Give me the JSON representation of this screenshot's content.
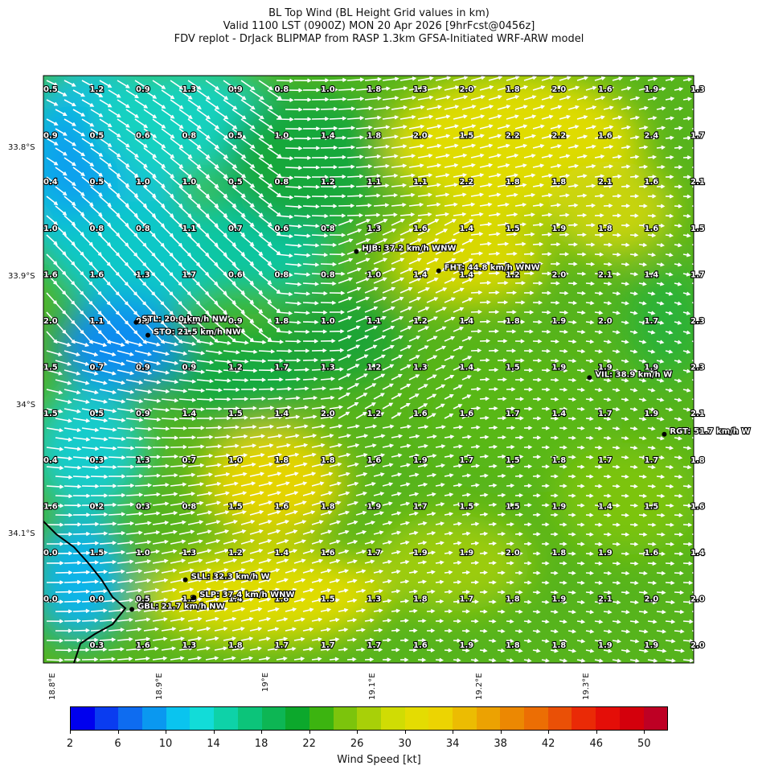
{
  "header": {
    "line1": "BL Top Wind (BL Height Grid values in km)",
    "line2": "Valid 1100 LST (0900Z) MON 20 Apr 2026 [9hrFcst@0456z]",
    "line3": "FDV replot - DrJack BLIPMAP from RASP 1.3km GFSA-Initiated WRF-ARW model"
  },
  "map": {
    "lat_labels": [
      "33.8°S",
      "33.9°S",
      "34°S",
      "34.1°S"
    ],
    "lon_labels": [
      "18.8°E",
      "18.9°E",
      "19°E",
      "19.1°E",
      "19.2°E",
      "19.3°E"
    ],
    "grid_values": [
      [
        "0.5",
        "1.2",
        "0.9",
        "1.3",
        "0.9",
        "0.8",
        "1.0",
        "1.8",
        "1.3",
        "2.0",
        "1.8",
        "2.0",
        "1.6",
        "1.9",
        "1.3"
      ],
      [
        "0.9",
        "0.5",
        "0.6",
        "0.8",
        "0.5",
        "1.0",
        "1.4",
        "1.8",
        "2.0",
        "1.5",
        "2.2",
        "2.2",
        "1.6",
        "2.4",
        "1.7"
      ],
      [
        "0.4",
        "0.5",
        "1.0",
        "1.0",
        "0.5",
        "0.8",
        "1.2",
        "1.1",
        "1.1",
        "2.2",
        "1.8",
        "1.8",
        "2.1",
        "1.6",
        "2.1"
      ],
      [
        "1.0",
        "0.8",
        "0.8",
        "1.1",
        "0.7",
        "0.6",
        "0.8",
        "1.3",
        "1.6",
        "1.4",
        "1.5",
        "1.9",
        "1.8",
        "1.6",
        "1.5"
      ],
      [
        "1.6",
        "1.6",
        "1.3",
        "1.7",
        "0.6",
        "0.8",
        "0.8",
        "1.0",
        "1.4",
        "1.4",
        "1.2",
        "2.0",
        "2.1",
        "1.4",
        "1.7"
      ],
      [
        "2.0",
        "1.1",
        "0.9",
        "1.1",
        "0.9",
        "1.8",
        "1.0",
        "1.1",
        "1.2",
        "1.4",
        "1.8",
        "1.9",
        "2.0",
        "1.7",
        "2.3"
      ],
      [
        "1.5",
        "0.7",
        "0.9",
        "0.9",
        "1.2",
        "1.7",
        "1.3",
        "1.2",
        "1.3",
        "1.4",
        "1.5",
        "1.9",
        "1.9",
        "1.9",
        "2.3"
      ],
      [
        "1.5",
        "0.5",
        "0.9",
        "1.4",
        "1.5",
        "1.4",
        "2.0",
        "1.2",
        "1.6",
        "1.6",
        "1.7",
        "1.4",
        "1.7",
        "1.9",
        "2.1"
      ],
      [
        "0.4",
        "0.3",
        "1.3",
        "0.7",
        "1.0",
        "1.8",
        "1.8",
        "1.6",
        "1.9",
        "1.7",
        "1.5",
        "1.8",
        "1.7",
        "1.7",
        "1.8"
      ],
      [
        "1.6",
        "0.2",
        "0.3",
        "0.8",
        "1.5",
        "1.6",
        "1.8",
        "1.9",
        "1.7",
        "1.5",
        "1.5",
        "1.9",
        "1.4",
        "1.5",
        "1.6"
      ],
      [
        "0.0",
        "1.5",
        "1.0",
        "1.3",
        "1.2",
        "1.4",
        "1.6",
        "1.7",
        "1.9",
        "1.9",
        "2.0",
        "1.8",
        "1.9",
        "1.6",
        "1.4"
      ],
      [
        "0.0",
        "0.0",
        "0.5",
        "1.3",
        "1.4",
        "1.6",
        "1.5",
        "1.3",
        "1.8",
        "1.7",
        "1.8",
        "1.9",
        "2.1",
        "2.0",
        "2.0"
      ],
      [
        "",
        "0.3",
        "1.6",
        "1.3",
        "1.8",
        "1.7",
        "1.7",
        "1.7",
        "1.6",
        "1.9",
        "1.8",
        "1.8",
        "1.9",
        "1.9",
        "2.0"
      ]
    ],
    "stations": [
      {
        "label": "HJB: 37.2 km/h WNW",
        "lon": 19.086,
        "lat": -33.881
      },
      {
        "label": "FHT: 44.8 km/h WNW",
        "lon": 19.163,
        "lat": -33.896
      },
      {
        "label": "STL: 20.0 km/h NW",
        "lon": 18.88,
        "lat": -33.936
      },
      {
        "label": "STO: 21.5 km/h NW",
        "lon": 18.891,
        "lat": -33.946
      },
      {
        "label": "VIL: 38.9 km/h W",
        "lon": 19.304,
        "lat": -33.979
      },
      {
        "label": "RGT: 51.7 km/h W",
        "lon": 19.374,
        "lat": -34.023
      },
      {
        "label": "SLL: 32.3 km/h W",
        "lon": 18.926,
        "lat": -34.136
      },
      {
        "label": "SLP: 37.4 km/h WNW",
        "lon": 18.934,
        "lat": -34.15
      },
      {
        "label": "GBL: 21.7 km/h NW",
        "lon": 18.876,
        "lat": -34.159
      }
    ]
  },
  "colorbar": {
    "label": "Wind Speed [kt]",
    "ticks": [
      "2",
      "6",
      "10",
      "14",
      "18",
      "22",
      "26",
      "30",
      "34",
      "38",
      "42",
      "46",
      "50"
    ],
    "colors": [
      "#0000ee",
      "#0a3cf0",
      "#0e6cf0",
      "#0a98f0",
      "#0ac4ef",
      "#12dcd8",
      "#0ed2a8",
      "#0cc47a",
      "#0db654",
      "#0ca82c",
      "#3cb410",
      "#7cc40c",
      "#a8d008",
      "#d0dc04",
      "#e4dc02",
      "#ecd402",
      "#ecbc02",
      "#eca202",
      "#ec8802",
      "#ec6e04",
      "#ea5006",
      "#ea2a06",
      "#e40e08",
      "#d4000c",
      "#be0024"
    ]
  }
}
